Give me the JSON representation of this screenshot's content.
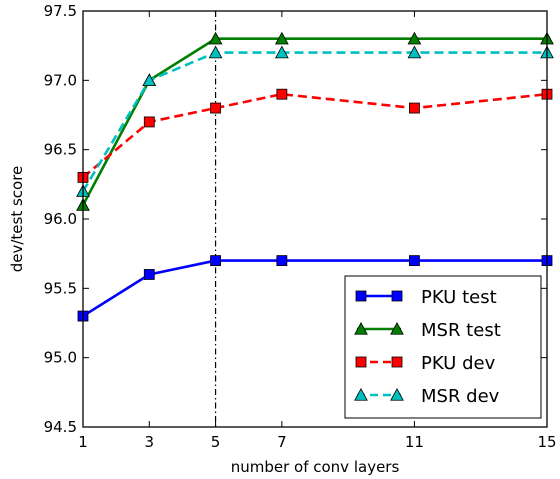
{
  "chart_data": {
    "type": "line",
    "xlabel": "number of conv layers",
    "ylabel": "dev/test score",
    "xlim": [
      1,
      15
    ],
    "ylim": [
      94.5,
      97.5
    ],
    "xticks": [
      1,
      3,
      5,
      7,
      11,
      15
    ],
    "yticks": [
      "94.5",
      "95.0",
      "95.5",
      "96.0",
      "96.5",
      "97.0",
      "97.5"
    ],
    "x": [
      1,
      3,
      5,
      7,
      11,
      15
    ],
    "vline_x": 5,
    "grid": false,
    "legend_position": "lower-right",
    "series": [
      {
        "name": "PKU test",
        "values": [
          95.3,
          95.6,
          95.7,
          95.7,
          95.7,
          95.7
        ],
        "color": "#0000ff",
        "marker": "square",
        "linestyle": "solid"
      },
      {
        "name": "MSR test",
        "values": [
          96.1,
          97.0,
          97.3,
          97.3,
          97.3,
          97.3
        ],
        "color": "#007f00",
        "marker": "triangle",
        "linestyle": "solid"
      },
      {
        "name": "PKU dev",
        "values": [
          96.3,
          96.7,
          96.8,
          96.9,
          96.8,
          96.9
        ],
        "color": "#ff0000",
        "marker": "square",
        "linestyle": "dashed"
      },
      {
        "name": "MSR dev",
        "values": [
          96.2,
          97.0,
          97.2,
          97.2,
          97.2,
          97.2
        ],
        "color": "#00bfbf",
        "marker": "triangle",
        "linestyle": "dashed"
      }
    ]
  }
}
